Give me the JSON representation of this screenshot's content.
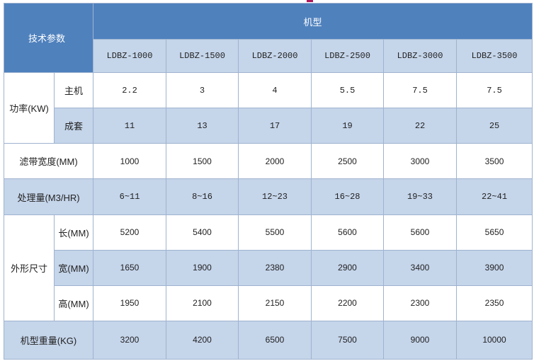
{
  "header": {
    "params_label": "技术参数",
    "model_label": "机型",
    "models": [
      "LDBZ-1000",
      "LDBZ-1500",
      "LDBZ-2000",
      "LDBZ-2500",
      "LDBZ-3000",
      "LDBZ-3500"
    ]
  },
  "power": {
    "label": "功率(KW)",
    "main": {
      "label": "主机",
      "values": [
        "2.2",
        "3",
        "4",
        "5.5",
        "7.5",
        "7.5"
      ]
    },
    "set": {
      "label": "成套",
      "values": [
        "11",
        "13",
        "17",
        "19",
        "22",
        "25"
      ]
    }
  },
  "belt_width": {
    "label": "滤带宽度(MM)",
    "values": [
      "1000",
      "1500",
      "2000",
      "2500",
      "3000",
      "3500"
    ]
  },
  "capacity": {
    "label": "处理量(M3/HR)",
    "values": [
      "6~11",
      "8~16",
      "12~23",
      "16~28",
      "19~33",
      "22~41"
    ]
  },
  "dimensions": {
    "label": "外形尺寸",
    "length": {
      "label": "长(MM)",
      "values": [
        "5200",
        "5400",
        "5500",
        "5600",
        "5600",
        "5650"
      ]
    },
    "width": {
      "label": "宽(MM)",
      "values": [
        "1650",
        "1900",
        "2380",
        "2900",
        "3400",
        "3900"
      ]
    },
    "height": {
      "label": "高(MM)",
      "values": [
        "1950",
        "2100",
        "2150",
        "2200",
        "2300",
        "2350"
      ]
    }
  },
  "weight": {
    "label": "机型重量(KG)",
    "values": [
      "3200",
      "4200",
      "6500",
      "7500",
      "9000",
      "10000"
    ]
  }
}
